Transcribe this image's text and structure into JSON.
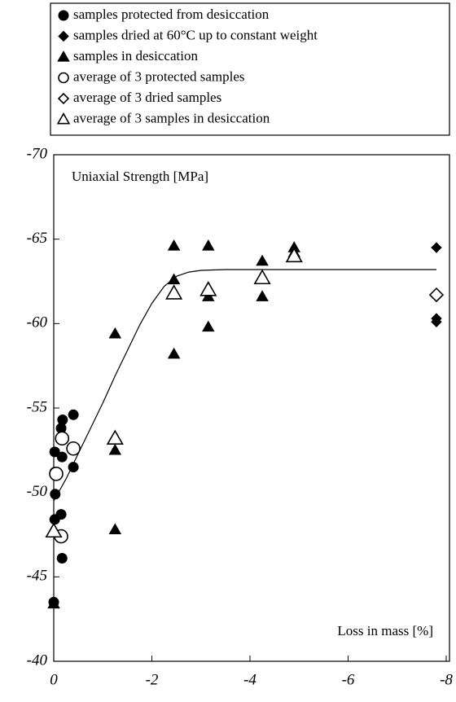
{
  "chart_data": {
    "type": "scatter",
    "annotations": [
      "Uniaxial Strength [MPa]",
      "Loss in mass [%]"
    ],
    "xlim": [
      0,
      -8
    ],
    "xticks": [
      0,
      -2,
      -4,
      -6,
      -8
    ],
    "ylim": [
      -40,
      -70
    ],
    "yticks": [
      -40,
      -45,
      -50,
      -55,
      -60,
      -65,
      -70
    ],
    "series": [
      {
        "name": "samples protected from desiccation",
        "marker": "circle",
        "filled": true,
        "color": "#000000",
        "x": [
          0,
          -0.17,
          -0.15,
          -0.02,
          -0.03,
          -0.02,
          -0.02,
          -0.15,
          -0.18,
          -0.17,
          -0.4,
          -0.4
        ],
        "values": [
          -43.5,
          -46.1,
          -48.7,
          -48.4,
          -49.9,
          -51.2,
          -52.4,
          -53.8,
          -54.3,
          -52.1,
          -54.6,
          -51.5
        ]
      },
      {
        "name": "samples dried at 60°C up to constant weight",
        "marker": "diamond",
        "filled": true,
        "color": "#000000",
        "x": [
          -7.8,
          -7.8,
          -7.8
        ],
        "values": [
          -64.5,
          -60.3,
          -60.1
        ]
      },
      {
        "name": "samples in desiccation",
        "marker": "triangle",
        "filled": true,
        "color": "#000000",
        "x": [
          0,
          -1.25,
          -1.25,
          -1.25,
          -2.45,
          -2.45,
          -2.45,
          -3.15,
          -3.15,
          -3.15,
          -4.25,
          -4.25,
          -4.9,
          -4.9
        ],
        "values": [
          -43.4,
          -59.4,
          -52.5,
          -47.8,
          -64.6,
          -62.6,
          -58.2,
          -64.6,
          -61.6,
          -59.8,
          -63.7,
          -61.6,
          -64.5,
          -64.2
        ]
      },
      {
        "name": "average of 3 protected samples",
        "marker": "circle",
        "filled": false,
        "color": "#000000",
        "x": [
          -0.05,
          -0.15,
          -0.17,
          -0.4
        ],
        "values": [
          -51.1,
          -47.4,
          -53.2,
          -52.6
        ]
      },
      {
        "name": "average of 3 dried samples",
        "marker": "diamond",
        "filled": false,
        "color": "#000000",
        "x": [
          -7.8
        ],
        "values": [
          -61.7
        ]
      },
      {
        "name": "average of 3 samples in desiccation",
        "marker": "triangle",
        "filled": false,
        "color": "#000000",
        "x": [
          0,
          -1.25,
          -2.45,
          -3.15,
          -4.25,
          -4.9
        ],
        "values": [
          -47.7,
          -53.2,
          -61.8,
          -62.0,
          -62.7,
          -64.0
        ]
      }
    ],
    "fit_line": {
      "x": [
        0,
        -0.25,
        -0.5,
        -0.75,
        -1,
        -1.25,
        -1.5,
        -1.75,
        -2,
        -2.25,
        -2.5,
        -2.75,
        -3,
        -3.5,
        -4,
        -7.8
      ],
      "values": [
        -49.5,
        -50.8,
        -52.3,
        -53.8,
        -55.3,
        -56.9,
        -58.4,
        -59.9,
        -61.2,
        -62.2,
        -62.8,
        -63.05,
        -63.15,
        -63.2,
        -63.2,
        -63.2
      ]
    }
  }
}
